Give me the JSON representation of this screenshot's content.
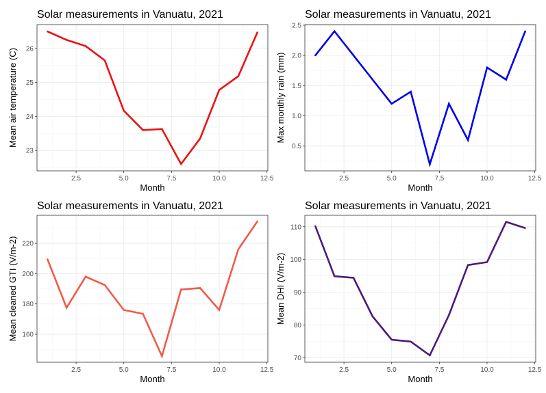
{
  "chart_data": [
    {
      "type": "line",
      "title": "Solar measurements in Vanuatu, 2021",
      "xlabel": "Month",
      "ylabel": "Mean air temperature (C)",
      "x": [
        1,
        2,
        3,
        4,
        5,
        6,
        7,
        8,
        9,
        10,
        11,
        12
      ],
      "series": [
        {
          "color": "#ee1111",
          "values": [
            26.5,
            26.25,
            26.07,
            25.65,
            24.17,
            23.6,
            23.63,
            22.6,
            23.35,
            24.78,
            25.18,
            26.47
          ]
        }
      ],
      "xlim": [
        0.45,
        12.55
      ],
      "ylim": [
        22.4,
        26.7
      ],
      "xticks": [
        2.5,
        5.0,
        7.5,
        10.0,
        12.5
      ],
      "xtick_labels": [
        "2.5",
        "5.0",
        "7.5",
        "10.0",
        "12.5"
      ],
      "yticks": [
        23,
        24,
        25,
        26
      ],
      "ytick_labels": [
        "23",
        "24",
        "25",
        "26"
      ],
      "grid": true
    },
    {
      "type": "line",
      "title": "Solar measurements in Vanuatu, 2021",
      "xlabel": "Month",
      "ylabel": "Max monthly rain (mm)",
      "x": [
        1,
        2,
        3,
        4,
        5,
        6,
        7,
        8,
        9,
        10,
        11,
        12
      ],
      "series": [
        {
          "color": "#0000ee",
          "values": [
            2.0,
            2.4,
            2.0,
            1.6,
            1.2,
            1.4,
            0.2,
            1.2,
            0.6,
            1.8,
            1.6,
            2.4
          ]
        }
      ],
      "xlim": [
        0.45,
        12.55
      ],
      "ylim": [
        0.09,
        2.51
      ],
      "xticks": [
        2.5,
        5.0,
        7.5,
        10.0,
        12.5
      ],
      "xtick_labels": [
        "2.5",
        "5.0",
        "7.5",
        "10.0",
        "12.5"
      ],
      "yticks": [
        0.5,
        1.0,
        1.5,
        2.0,
        2.5
      ],
      "ytick_labels": [
        "0.5",
        "1.0",
        "1.5",
        "2.0",
        "2.5"
      ],
      "grid": true
    },
    {
      "type": "line",
      "title": "Solar measurements in Vanuatu, 2021",
      "xlabel": "Month",
      "ylabel": "Mean cleaned GTI (V/m-2)",
      "x": [
        1,
        2,
        3,
        4,
        5,
        6,
        7,
        8,
        9,
        10,
        11,
        12
      ],
      "series": [
        {
          "color": "#f25a48",
          "values": [
            209.5,
            177.5,
            198.0,
            192.5,
            176.0,
            173.5,
            145.5,
            189.5,
            190.5,
            176.0,
            216.0,
            234.5
          ]
        }
      ],
      "xlim": [
        0.45,
        12.55
      ],
      "ylim": [
        141.5,
        238.5
      ],
      "xticks": [
        2.5,
        5.0,
        7.5,
        10.0,
        12.5
      ],
      "xtick_labels": [
        "2.5",
        "5.0",
        "7.5",
        "10.0",
        "12.5"
      ],
      "yticks": [
        160,
        180,
        200,
        220
      ],
      "ytick_labels": [
        "160",
        "180",
        "200",
        "220"
      ],
      "grid": true
    },
    {
      "type": "line",
      "title": "Solar measurements in Vanuatu, 2021",
      "xlabel": "Month",
      "ylabel": "Mean DHI (V/m-2)",
      "x": [
        1,
        2,
        3,
        4,
        5,
        6,
        7,
        8,
        9,
        10,
        11,
        12
      ],
      "series": [
        {
          "color": "#4b1a7c",
          "values": [
            110.2,
            94.9,
            94.4,
            82.6,
            75.5,
            74.9,
            70.7,
            83.0,
            98.3,
            99.2,
            111.5,
            109.6
          ]
        }
      ],
      "xlim": [
        0.45,
        12.55
      ],
      "ylim": [
        68.6,
        113.5
      ],
      "xticks": [
        2.5,
        5.0,
        7.5,
        10.0,
        12.5
      ],
      "xtick_labels": [
        "2.5",
        "5.0",
        "7.5",
        "10.0",
        "12.5"
      ],
      "yticks": [
        70,
        80,
        90,
        100,
        110
      ],
      "ytick_labels": [
        "70",
        "80",
        "90",
        "100",
        "110"
      ],
      "grid": true
    }
  ]
}
